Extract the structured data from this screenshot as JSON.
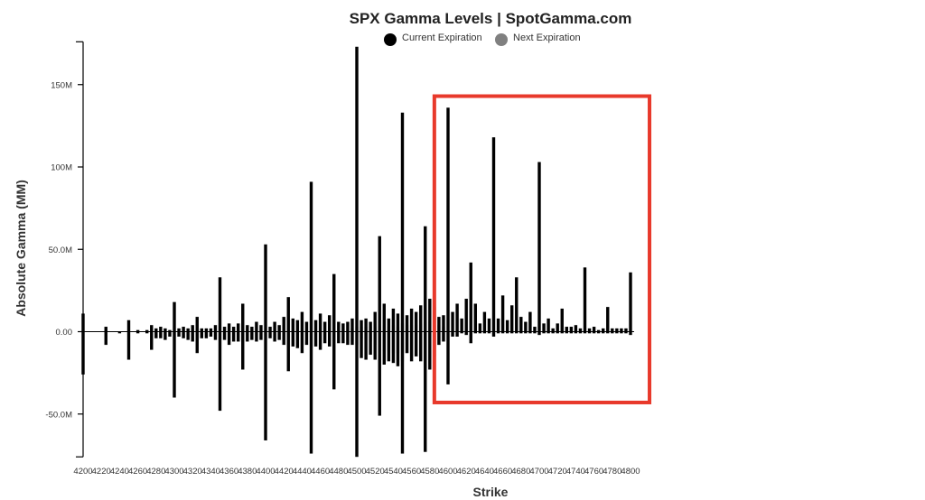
{
  "colors": {
    "current": "#000000",
    "next": "#c8c8c8",
    "next_legend": "#808080",
    "highlight": "#e8392b",
    "axis": "#000000"
  },
  "chart_data": {
    "type": "bar",
    "title": "SPX Gamma Levels | SpotGamma.com",
    "xlabel": "Strike",
    "ylabel": "Absolute Gamma (MM)",
    "ylim": [
      -76,
      176
    ],
    "ytick_values": [
      150,
      100,
      50,
      0,
      -50
    ],
    "ytick_labels": [
      "150M",
      "100M",
      "50.0M",
      "0.00",
      "-50.0M"
    ],
    "xtick_labels": [
      "4200",
      "4220",
      "4240",
      "4260",
      "4280",
      "4300",
      "4320",
      "4340",
      "4360",
      "4380",
      "4400",
      "4420",
      "4440",
      "4460",
      "4480",
      "4500",
      "4520",
      "4540",
      "4560",
      "4580",
      "4600",
      "4620",
      "4640",
      "4660",
      "4680",
      "4700",
      "4720",
      "4740",
      "4760",
      "4780",
      "4800"
    ],
    "legend": [
      "Current Expiration",
      "Next Expiration"
    ],
    "legend_position": "top-center",
    "grid": false,
    "highlight_box": {
      "x_range": [
        4585,
        4803
      ],
      "y_range": [
        -43,
        143
      ]
    },
    "series": [
      {
        "name": "Current Expiration",
        "bars": [
          [
            4200,
            11,
            -26
          ],
          [
            4225,
            3,
            -8
          ],
          [
            4240,
            0,
            -1
          ],
          [
            4250,
            7,
            -17
          ],
          [
            4260,
            1,
            -1
          ],
          [
            4270,
            1,
            -1
          ],
          [
            4275,
            4,
            -11
          ],
          [
            4280,
            2,
            -4
          ],
          [
            4285,
            3,
            -4
          ],
          [
            4290,
            2,
            -5
          ],
          [
            4295,
            1,
            -3
          ],
          [
            4300,
            18,
            -40
          ],
          [
            4305,
            2,
            -3
          ],
          [
            4310,
            3,
            -4
          ],
          [
            4315,
            2,
            -5
          ],
          [
            4320,
            4,
            -6
          ],
          [
            4325,
            9,
            -13
          ],
          [
            4330,
            2,
            -4
          ],
          [
            4335,
            2,
            -4
          ],
          [
            4340,
            2,
            -3
          ],
          [
            4345,
            4,
            -5
          ],
          [
            4350,
            33,
            -48
          ],
          [
            4355,
            3,
            -5
          ],
          [
            4360,
            5,
            -8
          ],
          [
            4365,
            3,
            -6
          ],
          [
            4370,
            5,
            -6
          ],
          [
            4375,
            17,
            -23
          ],
          [
            4380,
            4,
            -6
          ],
          [
            4385,
            3,
            -5
          ],
          [
            4390,
            6,
            -6
          ],
          [
            4395,
            4,
            -5
          ],
          [
            4400,
            53,
            -66
          ],
          [
            4405,
            3,
            -4
          ],
          [
            4410,
            6,
            -6
          ],
          [
            4415,
            4,
            -5
          ],
          [
            4420,
            9,
            -8
          ],
          [
            4425,
            21,
            -24
          ],
          [
            4430,
            8,
            -9
          ],
          [
            4435,
            7,
            -10
          ],
          [
            4440,
            12,
            -13
          ],
          [
            4445,
            6,
            -8
          ],
          [
            4450,
            91,
            -74
          ],
          [
            4455,
            7,
            -9
          ],
          [
            4460,
            11,
            -11
          ],
          [
            4465,
            6,
            -7
          ],
          [
            4470,
            10,
            -9
          ],
          [
            4475,
            35,
            -35
          ],
          [
            4480,
            6,
            -7
          ],
          [
            4485,
            5,
            -7
          ],
          [
            4490,
            6,
            -8
          ],
          [
            4495,
            8,
            -8
          ],
          [
            4500,
            173,
            -76
          ],
          [
            4505,
            7,
            -16
          ],
          [
            4510,
            8,
            -17
          ],
          [
            4515,
            6,
            -14
          ],
          [
            4520,
            12,
            -17
          ],
          [
            4525,
            58,
            -51
          ],
          [
            4530,
            17,
            -20
          ],
          [
            4535,
            8,
            -18
          ],
          [
            4540,
            14,
            -19
          ],
          [
            4545,
            11,
            -21
          ],
          [
            4550,
            133,
            -74
          ],
          [
            4555,
            10,
            -13
          ],
          [
            4560,
            14,
            -18
          ],
          [
            4565,
            12,
            -15
          ],
          [
            4570,
            16,
            -18
          ],
          [
            4575,
            64,
            -73
          ],
          [
            4580,
            20,
            -23
          ],
          [
            4585,
            15,
            -15
          ],
          [
            4590,
            9,
            -8
          ],
          [
            4595,
            10,
            -6
          ],
          [
            4600,
            136,
            -32
          ],
          [
            4605,
            12,
            -3
          ],
          [
            4610,
            17,
            -3
          ],
          [
            4615,
            8,
            -1
          ],
          [
            4620,
            20,
            -2
          ],
          [
            4625,
            42,
            -7
          ],
          [
            4630,
            17,
            -1
          ],
          [
            4635,
            5,
            -1
          ],
          [
            4640,
            12,
            -1
          ],
          [
            4645,
            8,
            -1
          ],
          [
            4650,
            118,
            -3
          ],
          [
            4655,
            8,
            -1
          ],
          [
            4660,
            22,
            -1
          ],
          [
            4665,
            7,
            -1
          ],
          [
            4670,
            16,
            -1
          ],
          [
            4675,
            33,
            -1
          ],
          [
            4680,
            9,
            -1
          ],
          [
            4685,
            6,
            -1
          ],
          [
            4690,
            12,
            -1
          ],
          [
            4695,
            3,
            -1
          ],
          [
            4700,
            103,
            -2
          ],
          [
            4705,
            5,
            -1
          ],
          [
            4710,
            8,
            -1
          ],
          [
            4715,
            2,
            -1
          ],
          [
            4720,
            5,
            -1
          ],
          [
            4725,
            14,
            -1
          ],
          [
            4730,
            3,
            -1
          ],
          [
            4735,
            3,
            -1
          ],
          [
            4740,
            4,
            -1
          ],
          [
            4745,
            2,
            -1
          ],
          [
            4750,
            39,
            -1
          ],
          [
            4755,
            2,
            -1
          ],
          [
            4760,
            3,
            -1
          ],
          [
            4765,
            1,
            -1
          ],
          [
            4770,
            2,
            -1
          ],
          [
            4775,
            15,
            -1
          ],
          [
            4780,
            2,
            -1
          ],
          [
            4785,
            2,
            -1
          ],
          [
            4790,
            2,
            -1
          ],
          [
            4795,
            2,
            -1
          ],
          [
            4800,
            36,
            -2
          ]
        ]
      },
      {
        "name": "Next Expiration",
        "bars": [
          [
            4495,
            2,
            -6
          ],
          [
            4500,
            3,
            -8
          ],
          [
            4505,
            3,
            -4
          ],
          [
            4510,
            3,
            -5
          ],
          [
            4515,
            3,
            -6
          ],
          [
            4520,
            3,
            -8
          ],
          [
            4525,
            3,
            -9
          ],
          [
            4530,
            4,
            -12
          ],
          [
            4535,
            3,
            -12
          ],
          [
            4540,
            4,
            -13
          ],
          [
            4545,
            3,
            -13
          ],
          [
            4550,
            5,
            -18
          ],
          [
            4555,
            4,
            -13
          ],
          [
            4560,
            4,
            -15
          ],
          [
            4565,
            4,
            -15
          ],
          [
            4570,
            5,
            -17
          ],
          [
            4575,
            6,
            -22
          ],
          [
            4580,
            6,
            -20
          ],
          [
            4585,
            4,
            -12
          ],
          [
            4590,
            4,
            -8
          ],
          [
            4595,
            3,
            -5
          ]
        ]
      }
    ]
  }
}
